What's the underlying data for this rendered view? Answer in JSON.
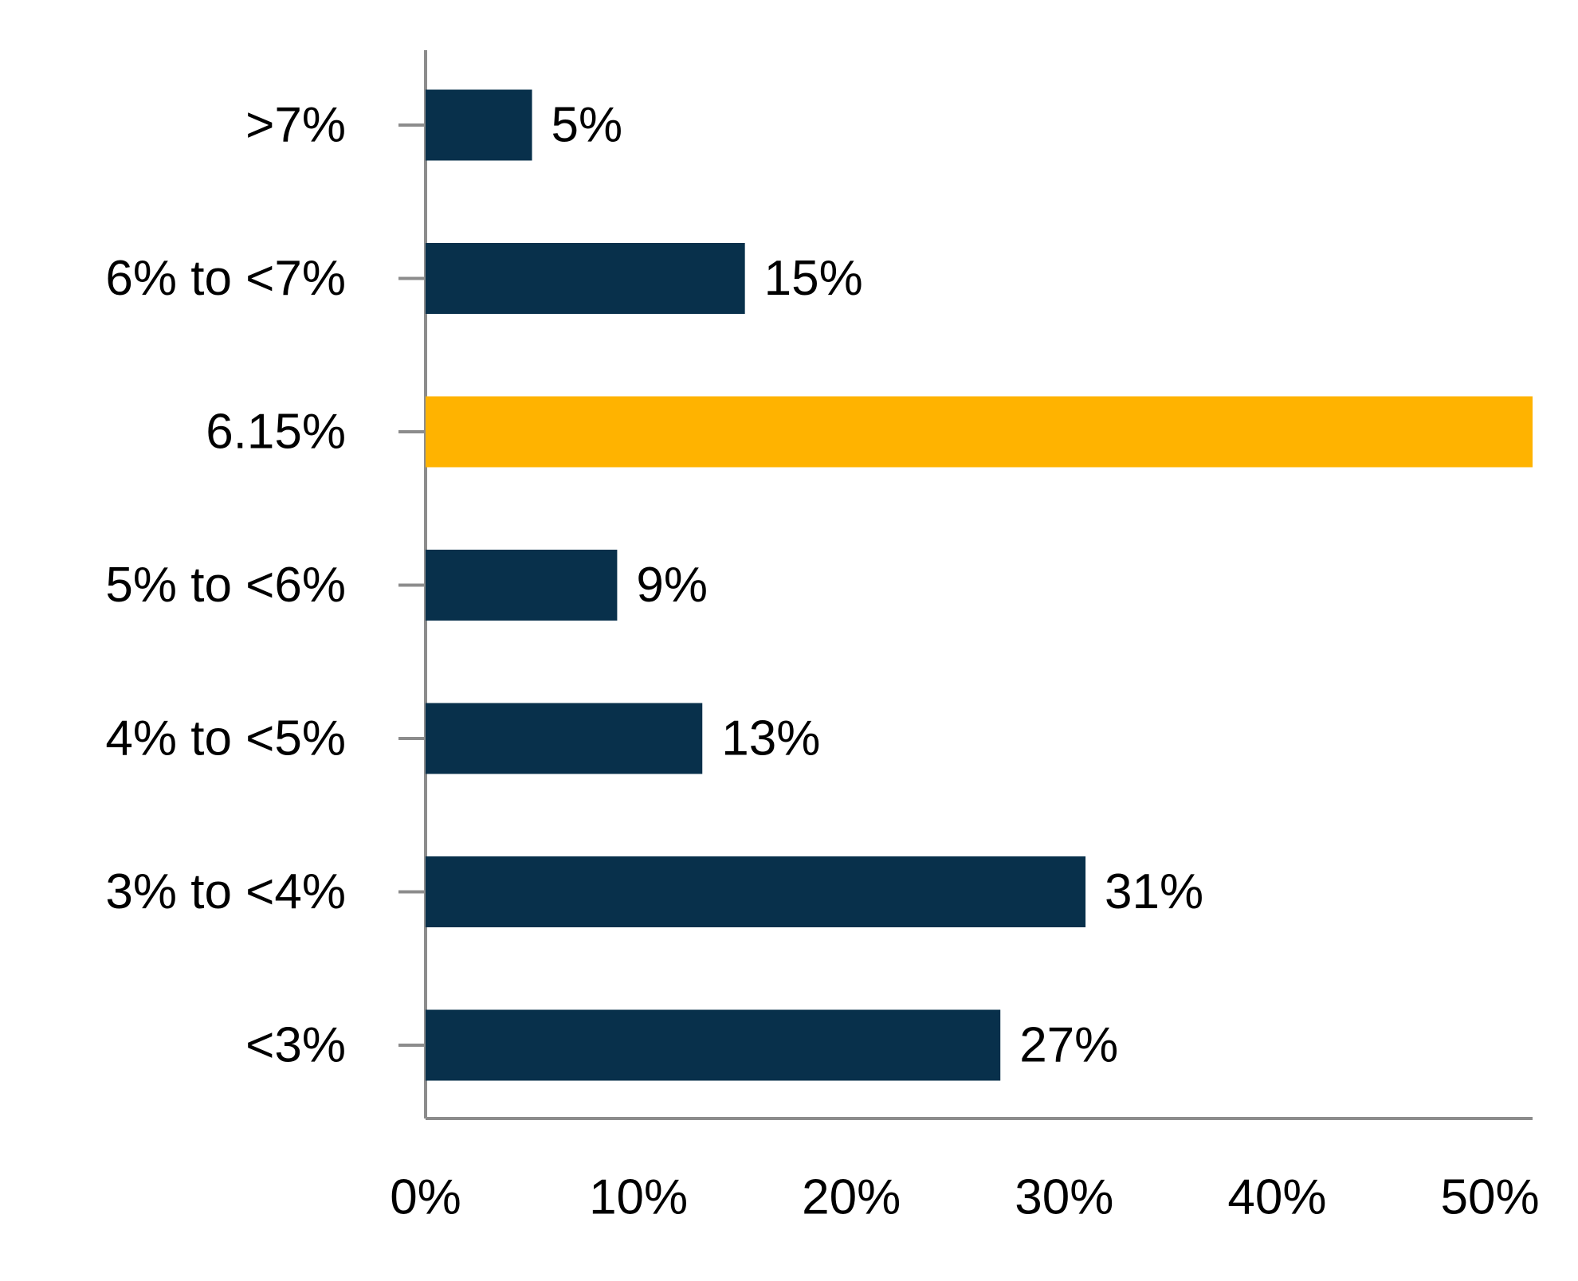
{
  "chart_data": {
    "type": "bar",
    "orientation": "horizontal",
    "categories": [
      ">7%",
      "6% to <7%",
      "6.15%",
      "5% to <6%",
      "4% to <5%",
      "3% to <4%",
      "<3%"
    ],
    "values": [
      5,
      15,
      52,
      9,
      13,
      31,
      27
    ],
    "value_labels": [
      "5%",
      "15%",
      null,
      "9%",
      "13%",
      "31%",
      "27%"
    ],
    "colors": [
      "#08304b",
      "#08304b",
      "#ffb300",
      "#08304b",
      "#08304b",
      "#08304b",
      "#08304b"
    ],
    "xlim": [
      0,
      52
    ],
    "xticks": [
      {
        "value": 0,
        "label": "0%"
      },
      {
        "value": 10,
        "label": "10%"
      },
      {
        "value": 20,
        "label": "20%"
      },
      {
        "value": 30,
        "label": "30%"
      },
      {
        "value": 40,
        "label": "40%"
      },
      {
        "value": 50,
        "label": "50%"
      }
    ],
    "grid": false
  }
}
